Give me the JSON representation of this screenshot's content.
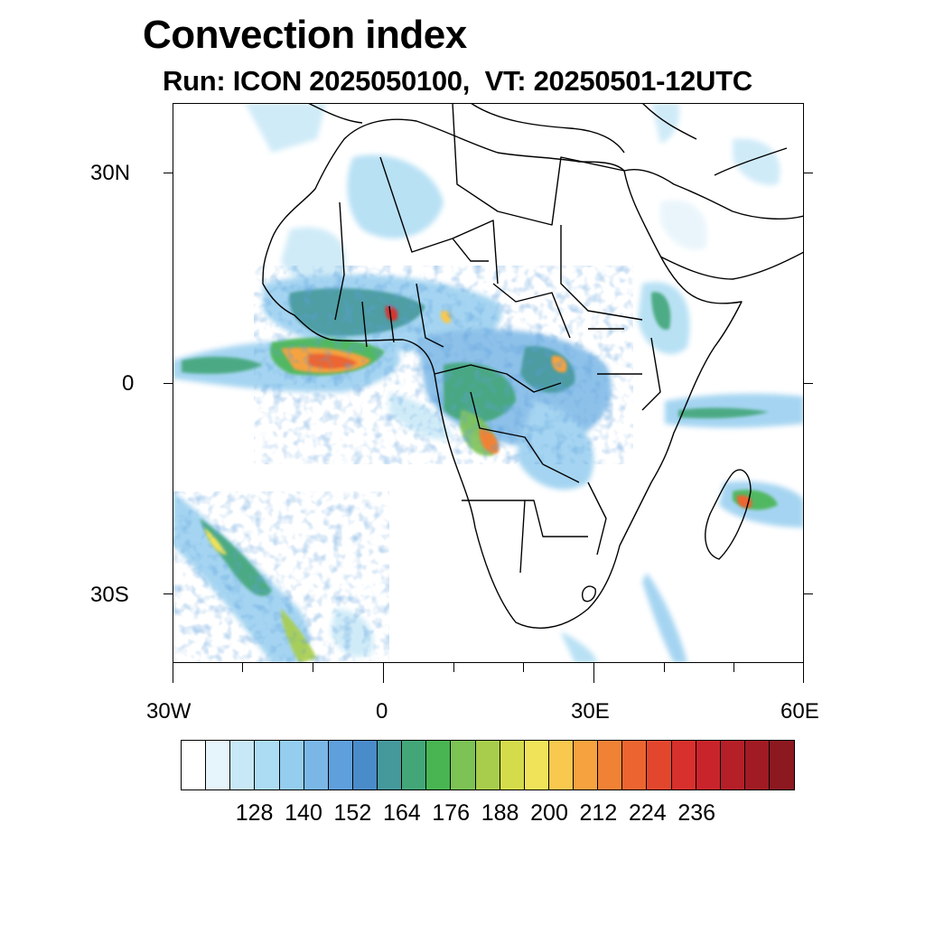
{
  "title": "Convection index",
  "subtitle": "Run: ICON 2025050100,  VT: 20250501-12UTC",
  "axes": {
    "lat_labels": [
      "30N",
      "0",
      "30S"
    ],
    "lon_labels": [
      "30W",
      "0",
      "30E",
      "60E"
    ]
  },
  "colorbar": {
    "labels": [
      "128",
      "140",
      "152",
      "164",
      "176",
      "188",
      "200",
      "212",
      "224",
      "236"
    ],
    "colors": [
      "#ffffff",
      "#e6f4fb",
      "#c8e8f7",
      "#acdcf3",
      "#95cdef",
      "#7ab7e6",
      "#5e9fdc",
      "#4a8bc9",
      "#45999b",
      "#43a679",
      "#48b552",
      "#7cc254",
      "#a8cd4c",
      "#d5dc4b",
      "#f0e35a",
      "#f8c84f",
      "#f5a23f",
      "#f08235",
      "#ec6530",
      "#e2472d",
      "#d8302d",
      "#c9242b",
      "#b51f28",
      "#a11b24",
      "#8c1820"
    ]
  },
  "map": {
    "extent": {
      "lon_min": -30,
      "lon_max": 60,
      "lat_min": -40,
      "lat_max": 40
    },
    "projection": "cylindrical-equidistant",
    "variable": "Convection index"
  }
}
